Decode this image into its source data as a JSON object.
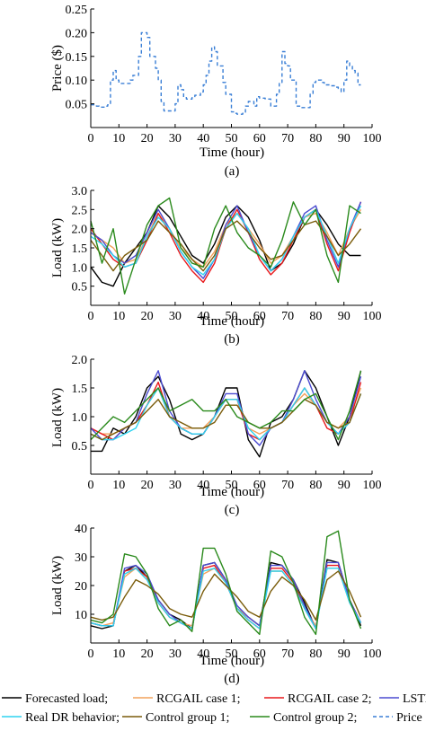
{
  "colors": {
    "forecast": "#000000",
    "rcgail1": "#f2a25c",
    "rcgail2": "#e8191c",
    "lstm": "#4b4bd1",
    "real_dr": "#2fd3f0",
    "control1": "#7a5c0a",
    "control2": "#2a8a1c",
    "price": "#3a7fd6"
  },
  "legend": {
    "row1": [
      {
        "key": "forecast",
        "label": "Forecasted load;",
        "style": "solid"
      },
      {
        "key": "rcgail1",
        "label": "RCGAIL case 1;",
        "style": "solid"
      },
      {
        "key": "rcgail2",
        "label": "RCGAIL case 2;",
        "style": "solid"
      },
      {
        "key": "lstm",
        "label": "LSTM",
        "style": "solid"
      }
    ],
    "row2": [
      {
        "key": "real_dr",
        "label": "Real DR behavior;",
        "style": "solid"
      },
      {
        "key": "control1",
        "label": "Control group 1;",
        "style": "solid"
      },
      {
        "key": "control2",
        "label": "Control group 2;",
        "style": "solid"
      },
      {
        "key": "price",
        "label": "Price",
        "style": "dashed"
      }
    ]
  },
  "chart_data": [
    {
      "type": "line",
      "panel_label": "(a)",
      "xlabel": "Time (hour)",
      "ylabel": "Price ($)",
      "xlim": [
        0,
        100
      ],
      "ylim": [
        0.0,
        0.25
      ],
      "xticks": [
        "0",
        "10",
        "20",
        "30",
        "40",
        "50",
        "60",
        "70",
        "80",
        "90",
        "100"
      ],
      "yticks": [
        "0.05",
        "0.10",
        "0.15",
        "0.20",
        "0.25"
      ],
      "step": true,
      "x_start": 0,
      "x_step": 1,
      "series": [
        {
          "key": "price",
          "values": [
            0.048,
            0.048,
            0.045,
            0.043,
            0.043,
            0.045,
            0.048,
            0.1,
            0.12,
            0.1,
            0.093,
            0.093,
            0.093,
            0.093,
            0.1,
            0.11,
            0.11,
            0.15,
            0.2,
            0.2,
            0.19,
            0.15,
            0.15,
            0.125,
            0.1,
            0.055,
            0.035,
            0.035,
            0.035,
            0.035,
            0.05,
            0.09,
            0.08,
            0.063,
            0.06,
            0.06,
            0.063,
            0.068,
            0.068,
            0.075,
            0.09,
            0.11,
            0.14,
            0.17,
            0.16,
            0.13,
            0.13,
            0.095,
            0.07,
            0.07,
            0.033,
            0.03,
            0.028,
            0.028,
            0.03,
            0.045,
            0.055,
            0.055,
            0.045,
            0.065,
            0.062,
            0.062,
            0.06,
            0.06,
            0.045,
            0.045,
            0.07,
            0.095,
            0.16,
            0.135,
            0.13,
            0.1,
            0.1,
            0.045,
            0.045,
            0.042,
            0.042,
            0.042,
            0.07,
            0.095,
            0.1,
            0.1,
            0.095,
            0.09,
            0.09,
            0.088,
            0.088,
            0.085,
            0.082,
            0.075,
            0.1,
            0.14,
            0.13,
            0.12,
            0.115,
            0.09,
            0.09
          ]
        }
      ]
    },
    {
      "type": "line",
      "panel_label": "(b)",
      "xlabel": "Time (hour)",
      "ylabel": "Load (kW)",
      "xlim": [
        0,
        100
      ],
      "ylim": [
        0.0,
        3.0
      ],
      "xticks": [
        "0",
        "10",
        "20",
        "30",
        "40",
        "50",
        "60",
        "70",
        "80",
        "90",
        "100"
      ],
      "yticks": [
        "0.5",
        "1.0",
        "1.5",
        "2.0",
        "2.5",
        "3.0"
      ],
      "step": false,
      "x_start": 0,
      "x_step": 4,
      "series": [
        {
          "key": "forecast",
          "values": [
            1.0,
            0.6,
            0.5,
            1.1,
            1.5,
            1.9,
            2.6,
            2.3,
            1.8,
            1.3,
            1.1,
            1.6,
            2.3,
            2.6,
            2.3,
            1.7,
            0.9,
            1.1,
            1.6,
            2.3,
            2.5,
            2.1,
            1.6,
            1.3,
            1.3
          ]
        },
        {
          "key": "rcgail1",
          "values": [
            1.9,
            1.7,
            1.5,
            1.1,
            1.2,
            1.8,
            2.4,
            2.0,
            1.5,
            1.2,
            1.0,
            1.4,
            2.1,
            2.4,
            2.0,
            1.6,
            1.1,
            1.3,
            1.8,
            2.3,
            2.4,
            1.9,
            1.3,
            2.0,
            2.5
          ]
        },
        {
          "key": "rcgail2",
          "values": [
            2.0,
            1.6,
            1.2,
            1.0,
            1.1,
            1.7,
            2.4,
            1.9,
            1.3,
            0.9,
            0.6,
            1.1,
            2.0,
            2.5,
            1.9,
            1.2,
            0.8,
            1.1,
            1.7,
            2.3,
            2.5,
            1.6,
            0.9,
            1.9,
            2.7
          ]
        },
        {
          "key": "lstm",
          "values": [
            1.9,
            1.7,
            1.3,
            1.1,
            1.3,
            1.9,
            2.5,
            2.0,
            1.4,
            1.0,
            0.7,
            1.2,
            2.1,
            2.6,
            1.9,
            1.3,
            0.9,
            1.2,
            1.8,
            2.4,
            2.6,
            1.7,
            1.0,
            2.0,
            2.7
          ]
        },
        {
          "key": "real_dr",
          "values": [
            1.8,
            1.6,
            1.3,
            1.0,
            1.1,
            1.8,
            2.3,
            2.0,
            1.4,
            1.0,
            0.8,
            1.2,
            2.0,
            2.4,
            2.0,
            1.3,
            0.9,
            1.2,
            1.8,
            2.3,
            2.5,
            1.8,
            1.1,
            2.0,
            2.6
          ]
        },
        {
          "key": "control1",
          "values": [
            1.7,
            1.3,
            0.9,
            1.3,
            1.5,
            1.7,
            2.2,
            1.9,
            1.6,
            1.2,
            0.9,
            1.3,
            2.0,
            2.2,
            1.9,
            1.5,
            1.2,
            1.3,
            1.7,
            2.1,
            2.2,
            1.8,
            1.3,
            1.6,
            2.0
          ]
        },
        {
          "key": "control2",
          "values": [
            2.2,
            1.1,
            2.0,
            0.3,
            1.2,
            2.1,
            2.6,
            2.8,
            1.5,
            1.1,
            1.0,
            2.0,
            2.6,
            1.9,
            1.5,
            1.3,
            1.0,
            1.7,
            2.7,
            2.1,
            2.5,
            1.3,
            0.6,
            2.6,
            2.4
          ]
        }
      ]
    },
    {
      "type": "line",
      "panel_label": "(c)",
      "xlabel": "Time (hour)",
      "ylabel": "Load (kW)",
      "xlim": [
        0,
        100
      ],
      "ylim": [
        0.0,
        2.0
      ],
      "xticks": [
        "0",
        "10",
        "20",
        "30",
        "40",
        "50",
        "60",
        "70",
        "80",
        "90",
        "100"
      ],
      "yticks": [
        "0.5",
        "1.0",
        "1.5",
        "2.0"
      ],
      "step": false,
      "x_start": 0,
      "x_step": 4,
      "series": [
        {
          "key": "forecast",
          "values": [
            0.4,
            0.4,
            0.8,
            0.7,
            1.0,
            1.5,
            1.7,
            1.3,
            0.7,
            0.6,
            0.7,
            1.0,
            1.5,
            1.5,
            0.6,
            0.3,
            0.9,
            1.0,
            1.3,
            1.8,
            1.5,
            1.0,
            0.5,
            1.0,
            1.8
          ]
        },
        {
          "key": "rcgail1",
          "values": [
            0.8,
            0.7,
            0.7,
            0.8,
            0.9,
            1.2,
            1.5,
            1.0,
            0.8,
            0.8,
            0.8,
            1.0,
            1.3,
            1.3,
            0.8,
            0.7,
            0.8,
            0.9,
            1.2,
            1.4,
            1.2,
            0.9,
            0.8,
            1.0,
            1.5
          ]
        },
        {
          "key": "rcgail2",
          "values": [
            0.8,
            0.7,
            0.6,
            0.8,
            0.9,
            1.2,
            1.6,
            1.0,
            0.8,
            0.7,
            0.7,
            1.0,
            1.3,
            1.3,
            0.7,
            0.6,
            0.8,
            0.9,
            1.2,
            1.5,
            1.2,
            0.8,
            0.7,
            0.9,
            1.6
          ]
        },
        {
          "key": "lstm",
          "values": [
            0.8,
            0.6,
            0.6,
            0.8,
            0.9,
            1.4,
            1.8,
            1.1,
            0.8,
            0.7,
            0.7,
            1.0,
            1.4,
            1.4,
            0.7,
            0.5,
            0.8,
            0.9,
            1.3,
            1.8,
            1.3,
            0.9,
            0.7,
            1.0,
            1.7
          ]
        },
        {
          "key": "real_dr",
          "values": [
            0.7,
            0.6,
            0.6,
            0.7,
            0.8,
            1.2,
            1.5,
            1.0,
            0.8,
            0.7,
            0.7,
            1.0,
            1.3,
            1.3,
            0.8,
            0.6,
            0.8,
            0.9,
            1.2,
            1.5,
            1.2,
            0.9,
            0.7,
            0.9,
            1.4
          ]
        },
        {
          "key": "control1",
          "values": [
            0.7,
            0.6,
            0.7,
            0.8,
            0.9,
            1.1,
            1.3,
            1.0,
            0.9,
            0.8,
            0.8,
            0.9,
            1.2,
            1.2,
            0.9,
            0.8,
            0.8,
            0.9,
            1.1,
            1.3,
            1.2,
            0.9,
            0.8,
            0.9,
            1.4
          ]
        },
        {
          "key": "control2",
          "values": [
            0.6,
            0.8,
            1.0,
            0.9,
            1.1,
            1.3,
            1.5,
            1.1,
            1.2,
            1.3,
            1.1,
            1.1,
            1.3,
            1.0,
            0.9,
            0.8,
            0.9,
            1.1,
            1.1,
            1.3,
            1.4,
            1.0,
            0.6,
            1.1,
            1.8
          ]
        }
      ]
    },
    {
      "type": "line",
      "panel_label": "(d)",
      "xlabel": "Time (hour)",
      "ylabel": "Load (kW)",
      "xlim": [
        0,
        100
      ],
      "ylim": [
        0,
        40
      ],
      "xticks": [
        "0",
        "10",
        "20",
        "30",
        "40",
        "50",
        "60",
        "70",
        "80",
        "90",
        "100"
      ],
      "yticks": [
        "10",
        "20",
        "30",
        "40"
      ],
      "step": false,
      "x_start": 0,
      "x_step": 4,
      "series": [
        {
          "key": "forecast",
          "values": [
            6,
            5,
            6,
            25,
            27,
            23,
            15,
            10,
            8,
            5,
            27,
            28,
            22,
            12,
            9,
            6,
            28,
            27,
            22,
            14,
            5,
            29,
            28,
            15,
            6
          ]
        },
        {
          "key": "rcgail1",
          "values": [
            7,
            6,
            7,
            23,
            26,
            22,
            14,
            9,
            7,
            6,
            24,
            26,
            21,
            12,
            9,
            6,
            25,
            25,
            20,
            12,
            6,
            26,
            26,
            14,
            7
          ]
        },
        {
          "key": "rcgail2",
          "values": [
            7,
            6,
            6,
            25,
            26,
            23,
            14,
            9,
            7,
            5,
            26,
            27,
            21,
            12,
            8,
            5,
            26,
            26,
            21,
            12,
            5,
            27,
            27,
            15,
            7
          ]
        },
        {
          "key": "lstm",
          "values": [
            7,
            6,
            6,
            26,
            27,
            24,
            15,
            10,
            7,
            5,
            27,
            28,
            22,
            13,
            9,
            6,
            27,
            27,
            22,
            13,
            5,
            28,
            28,
            15,
            7
          ]
        },
        {
          "key": "real_dr",
          "values": [
            7,
            6,
            6,
            24,
            26,
            22,
            14,
            9,
            7,
            5,
            25,
            26,
            21,
            12,
            8,
            5,
            25,
            25,
            20,
            12,
            5,
            26,
            26,
            14,
            7
          ]
        },
        {
          "key": "control1",
          "values": [
            9,
            8,
            9,
            16,
            22,
            20,
            17,
            12,
            10,
            9,
            18,
            24,
            20,
            16,
            11,
            9,
            18,
            23,
            20,
            15,
            8,
            22,
            25,
            18,
            9
          ]
        },
        {
          "key": "control2",
          "values": [
            8,
            7,
            10,
            31,
            30,
            24,
            12,
            6,
            8,
            4,
            33,
            33,
            24,
            11,
            7,
            3,
            32,
            30,
            21,
            9,
            3,
            37,
            39,
            15,
            5
          ]
        }
      ]
    }
  ]
}
